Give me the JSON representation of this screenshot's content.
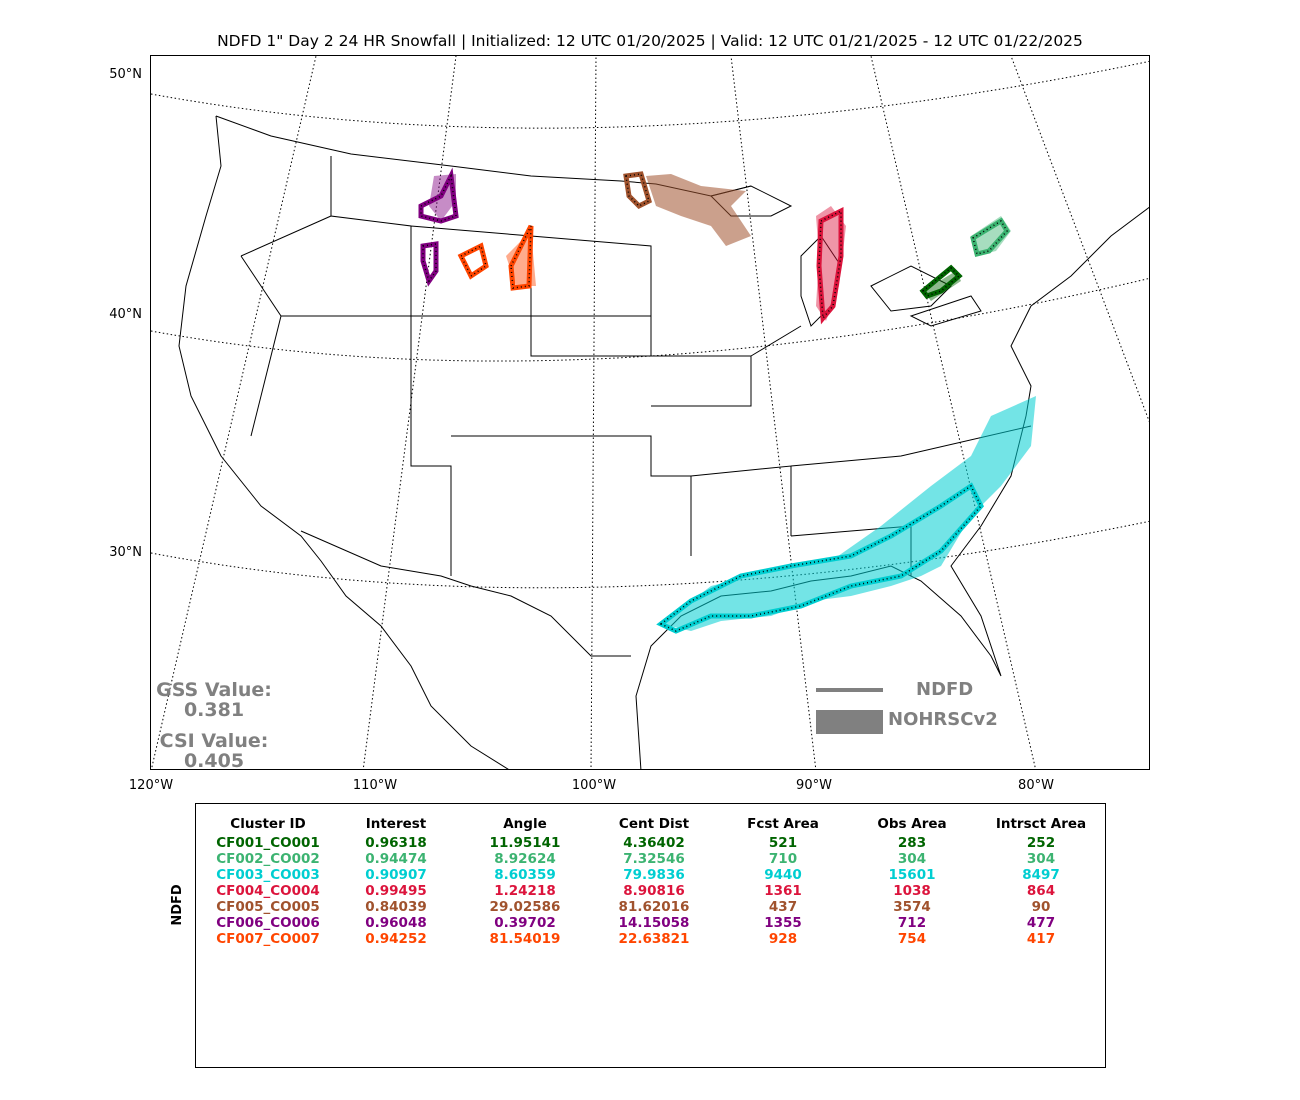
{
  "title": "NDFD 1\" Day 2 24 HR Snowfall | Initialized: 12 UTC 01/20/2025 | Valid: 12 UTC 01/21/2025 - 12 UTC 01/22/2025",
  "lat_labels": [
    "50°N",
    "40°N",
    "30°N"
  ],
  "lon_labels": [
    "120°W",
    "110°W",
    "100°W",
    "90°W",
    "80°W"
  ],
  "scores": {
    "gss_label": "GSS Value:",
    "gss_value": "0.381",
    "csi_label": "CSI Value:",
    "csi_value": "0.405"
  },
  "legend": {
    "forecast_label": "NDFD",
    "observed_label": "NOHRSCv2",
    "color": "#808080"
  },
  "table": {
    "ylabel": "NDFD",
    "headers": [
      "Cluster ID",
      "Interest",
      "Angle",
      "Cent Dist",
      "Fcst Area",
      "Obs Area",
      "Intrsct Area"
    ],
    "rows": [
      {
        "id": "CF001_CO001",
        "interest": "0.96318",
        "angle": "11.95141",
        "cent_dist": "4.36402",
        "fcst_area": "521",
        "obs_area": "283",
        "intrsct_area": "252",
        "color": "#006400"
      },
      {
        "id": "CF002_CO002",
        "interest": "0.94474",
        "angle": "8.92624",
        "cent_dist": "7.32546",
        "fcst_area": "710",
        "obs_area": "304",
        "intrsct_area": "304",
        "color": "#3cb371"
      },
      {
        "id": "CF003_CO003",
        "interest": "0.90907",
        "angle": "8.60359",
        "cent_dist": "79.9836",
        "fcst_area": "9440",
        "obs_area": "15601",
        "intrsct_area": "8497",
        "color": "#00ced1"
      },
      {
        "id": "CF004_CO004",
        "interest": "0.99495",
        "angle": "1.24218",
        "cent_dist": "8.90816",
        "fcst_area": "1361",
        "obs_area": "1038",
        "intrsct_area": "864",
        "color": "#dc143c"
      },
      {
        "id": "CF005_CO005",
        "interest": "0.84039",
        "angle": "29.02586",
        "cent_dist": "81.62016",
        "fcst_area": "437",
        "obs_area": "3574",
        "intrsct_area": "90",
        "color": "#a0522d"
      },
      {
        "id": "CF006_CO006",
        "interest": "0.96048",
        "angle": "0.39702",
        "cent_dist": "14.15058",
        "fcst_area": "1355",
        "obs_area": "712",
        "intrsct_area": "477",
        "color": "#800080"
      },
      {
        "id": "CF007_CO007",
        "interest": "0.94252",
        "angle": "81.54019",
        "cent_dist": "22.63821",
        "fcst_area": "928",
        "obs_area": "754",
        "intrsct_area": "417",
        "color": "#ff4500"
      }
    ]
  }
}
